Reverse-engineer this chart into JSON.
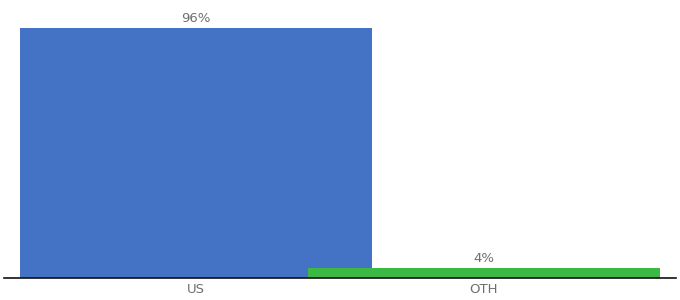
{
  "categories": [
    "US",
    "OTH"
  ],
  "values": [
    96,
    4
  ],
  "bar_colors": [
    "#4472c4",
    "#3cb944"
  ],
  "labels": [
    "96%",
    "4%"
  ],
  "background_color": "#ffffff",
  "ylim": [
    0,
    105
  ],
  "bar_width": 0.55,
  "label_fontsize": 9.5,
  "tick_fontsize": 9.5,
  "tick_color": "#6e6e6e",
  "spine_color": "#111111",
  "label_color": "#6e6e6e",
  "x_positions": [
    0.3,
    0.75
  ],
  "xlim": [
    0.0,
    1.05
  ]
}
